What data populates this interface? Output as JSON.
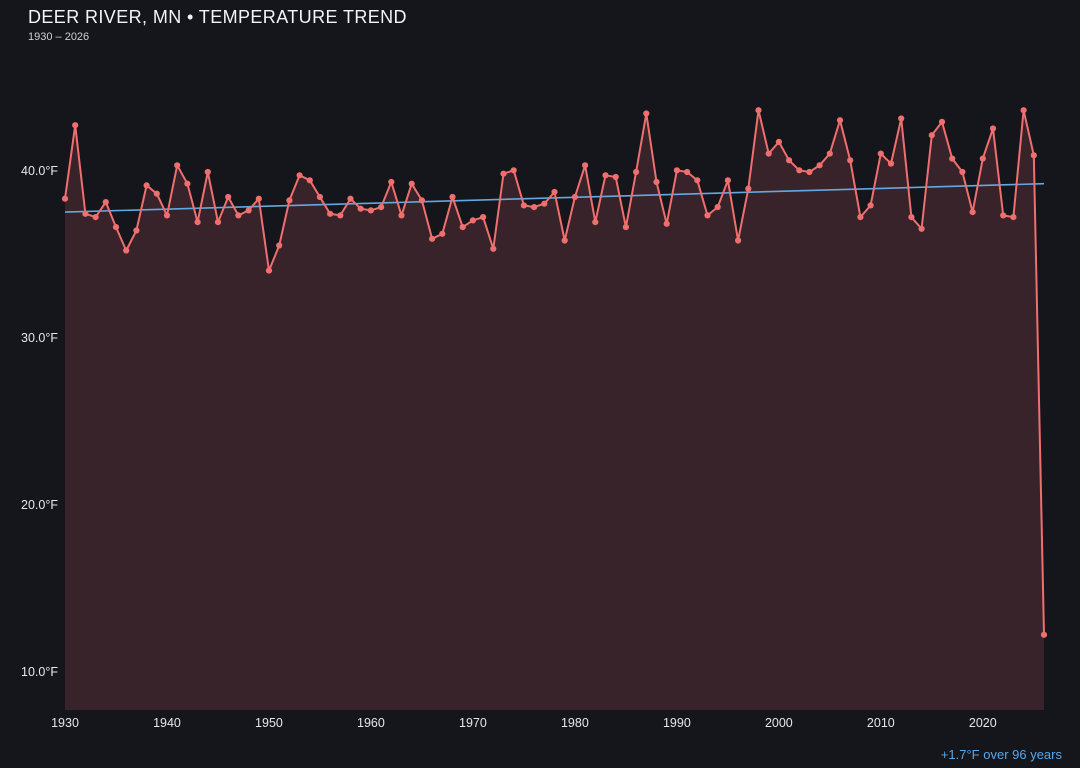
{
  "header": {
    "title": "DEER RIVER, MN • TEMPERATURE TREND",
    "subtitle": "1930 – 2026"
  },
  "footer": {
    "trend_note": "+1.7°F over 96 years"
  },
  "colors": {
    "background": "#15151c",
    "line": "#ef6f6f",
    "area_fill": "rgba(239,111,111,0.16)",
    "trend_line": "#64a8e0",
    "tick_text": "#e6e6ea",
    "title_text": "#f4f4f6",
    "annotation_text": "#57a7ea"
  },
  "chart_data": {
    "type": "line",
    "title": "DEER RIVER, MN • TEMPERATURE TREND",
    "subtitle": "1930 – 2026",
    "xlabel": "",
    "ylabel": "°F",
    "xlim": [
      1930,
      2026
    ],
    "ylim": [
      7.7,
      47.5
    ],
    "x_ticks": [
      1930,
      1940,
      1950,
      1960,
      1970,
      1980,
      1990,
      2000,
      2010,
      2020
    ],
    "y_ticks": [
      {
        "value": 40,
        "label": "40.0°F"
      },
      {
        "value": 30,
        "label": "30.0°F"
      },
      {
        "value": 20,
        "label": "20.0°F"
      },
      {
        "value": 10,
        "label": "10.0°F"
      }
    ],
    "grid": false,
    "legend": null,
    "x": [
      1930,
      1931,
      1932,
      1933,
      1934,
      1935,
      1936,
      1937,
      1938,
      1939,
      1940,
      1941,
      1942,
      1943,
      1944,
      1945,
      1946,
      1947,
      1948,
      1949,
      1950,
      1951,
      1952,
      1953,
      1954,
      1955,
      1956,
      1957,
      1958,
      1959,
      1960,
      1961,
      1962,
      1963,
      1964,
      1965,
      1966,
      1967,
      1968,
      1969,
      1970,
      1971,
      1972,
      1973,
      1974,
      1975,
      1976,
      1977,
      1978,
      1979,
      1980,
      1981,
      1982,
      1983,
      1984,
      1985,
      1986,
      1987,
      1988,
      1989,
      1990,
      1991,
      1992,
      1993,
      1994,
      1995,
      1996,
      1997,
      1998,
      1999,
      2000,
      2001,
      2002,
      2003,
      2004,
      2005,
      2006,
      2007,
      2008,
      2009,
      2010,
      2011,
      2012,
      2013,
      2014,
      2015,
      2016,
      2017,
      2018,
      2019,
      2020,
      2021,
      2022,
      2023,
      2024,
      2025,
      2026
    ],
    "values": [
      38.3,
      42.7,
      37.4,
      37.2,
      38.1,
      36.6,
      35.2,
      36.4,
      39.1,
      38.6,
      37.3,
      40.3,
      39.2,
      36.9,
      39.9,
      36.9,
      38.4,
      37.3,
      37.6,
      38.3,
      34.0,
      35.5,
      38.2,
      39.7,
      39.4,
      38.4,
      37.4,
      37.3,
      38.3,
      37.7,
      37.6,
      37.8,
      39.3,
      37.3,
      39.2,
      38.2,
      35.9,
      36.2,
      38.4,
      36.6,
      37.0,
      37.2,
      35.3,
      39.8,
      40.0,
      37.9,
      37.8,
      38.0,
      38.7,
      35.8,
      38.4,
      40.3,
      36.9,
      39.7,
      39.6,
      36.6,
      39.9,
      43.4,
      39.3,
      36.8,
      40.0,
      39.9,
      39.4,
      37.3,
      37.8,
      39.4,
      35.8,
      38.9,
      43.6,
      41.0,
      41.7,
      40.6,
      40.0,
      39.9,
      40.3,
      41.0,
      43.0,
      40.6,
      37.2,
      37.9,
      41.0,
      40.4,
      43.1,
      37.2,
      36.5,
      42.1,
      42.9,
      40.7,
      39.9,
      37.5,
      40.7,
      42.5,
      37.3,
      37.2,
      43.6,
      40.9,
      12.2
    ],
    "trend": {
      "start_year": 1930,
      "end_year": 2026,
      "start_value": 37.5,
      "end_value": 39.2,
      "label": "+1.7°F over 96 years"
    }
  }
}
